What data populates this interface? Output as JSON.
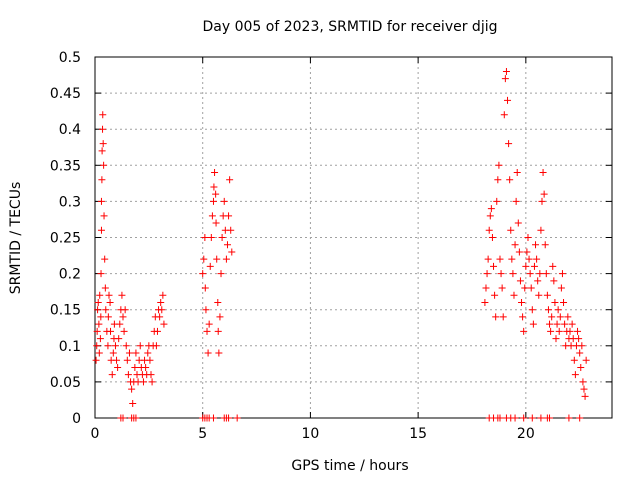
{
  "chart_data": {
    "type": "scatter",
    "title": "Day 005 of 2023, SRMTID for receiver djig",
    "xlabel": "GPS time / hours",
    "ylabel": "SRMTID / TECUs",
    "xlim": [
      0,
      24
    ],
    "ylim": [
      0,
      0.5
    ],
    "x_ticks": [
      0,
      5,
      10,
      15,
      20
    ],
    "y_ticks": [
      0,
      0.05,
      0.1,
      0.15,
      0.2,
      0.25,
      0.3,
      0.35,
      0.4,
      0.45,
      0.5
    ],
    "x_tick_labels": [
      "0",
      "5",
      "10",
      "15",
      "20"
    ],
    "y_tick_labels": [
      "0",
      "0.05",
      "0.1",
      "0.15",
      "0.2",
      "0.25",
      "0.3",
      "0.35",
      "0.4",
      "0.45",
      "0.5"
    ],
    "grid": true,
    "marker": "+",
    "marker_color": "#ff0000",
    "series": [
      {
        "name": "SRMTID",
        "points": [
          [
            0.05,
            0.08
          ],
          [
            0.08,
            0.1
          ],
          [
            0.1,
            0.12
          ],
          [
            0.12,
            0.15
          ],
          [
            0.15,
            0.16
          ],
          [
            0.18,
            0.13
          ],
          [
            0.2,
            0.09
          ],
          [
            0.22,
            0.17
          ],
          [
            0.25,
            0.11
          ],
          [
            0.27,
            0.14
          ],
          [
            0.28,
            0.2
          ],
          [
            0.3,
            0.26
          ],
          [
            0.3,
            0.3
          ],
          [
            0.32,
            0.33
          ],
          [
            0.33,
            0.37
          ],
          [
            0.35,
            0.4
          ],
          [
            0.36,
            0.42
          ],
          [
            0.38,
            0.38
          ],
          [
            0.4,
            0.35
          ],
          [
            0.42,
            0.28
          ],
          [
            0.45,
            0.22
          ],
          [
            0.48,
            0.18
          ],
          [
            0.5,
            0.15
          ],
          [
            0.55,
            0.12
          ],
          [
            0.6,
            0.1
          ],
          [
            0.62,
            0.14
          ],
          [
            0.65,
            0.17
          ],
          [
            0.7,
            0.16
          ],
          [
            0.72,
            0.12
          ],
          [
            0.75,
            0.08
          ],
          [
            0.8,
            0.06
          ],
          [
            0.85,
            0.09
          ],
          [
            0.88,
            0.11
          ],
          [
            0.9,
            0.13
          ],
          [
            0.95,
            0.1
          ],
          [
            1.0,
            0.08
          ],
          [
            1.05,
            0.07
          ],
          [
            1.1,
            0.11
          ],
          [
            1.15,
            0.13
          ],
          [
            1.2,
            0.15
          ],
          [
            1.25,
            0.17
          ],
          [
            1.3,
            0.14
          ],
          [
            1.35,
            0.12
          ],
          [
            1.4,
            0.15
          ],
          [
            1.45,
            0.1
          ],
          [
            1.5,
            0.08
          ],
          [
            1.55,
            0.06
          ],
          [
            1.6,
            0.09
          ],
          [
            1.65,
            0.05
          ],
          [
            1.7,
            0.04
          ],
          [
            1.75,
            0.02
          ],
          [
            1.8,
            0.05
          ],
          [
            1.85,
            0.07
          ],
          [
            1.9,
            0.09
          ],
          [
            1.95,
            0.06
          ],
          [
            2.0,
            0.05
          ],
          [
            2.05,
            0.08
          ],
          [
            2.1,
            0.1
          ],
          [
            2.15,
            0.07
          ],
          [
            2.2,
            0.06
          ],
          [
            2.25,
            0.05
          ],
          [
            2.3,
            0.08
          ],
          [
            2.35,
            0.07
          ],
          [
            2.4,
            0.06
          ],
          [
            2.45,
            0.09
          ],
          [
            2.5,
            0.1
          ],
          [
            2.55,
            0.08
          ],
          [
            2.6,
            0.06
          ],
          [
            2.65,
            0.05
          ],
          [
            2.7,
            0.1
          ],
          [
            2.75,
            0.12
          ],
          [
            2.8,
            0.14
          ],
          [
            2.85,
            0.1
          ],
          [
            2.9,
            0.12
          ],
          [
            2.95,
            0.15
          ],
          [
            3.0,
            0.14
          ],
          [
            3.05,
            0.16
          ],
          [
            3.1,
            0.15
          ],
          [
            3.15,
            0.17
          ],
          [
            3.2,
            0.13
          ],
          [
            5.0,
            0.2
          ],
          [
            5.05,
            0.22
          ],
          [
            5.1,
            0.25
          ],
          [
            5.12,
            0.18
          ],
          [
            5.15,
            0.15
          ],
          [
            5.2,
            0.12
          ],
          [
            5.25,
            0.09
          ],
          [
            5.3,
            0.13
          ],
          [
            5.35,
            0.21
          ],
          [
            5.4,
            0.25
          ],
          [
            5.45,
            0.28
          ],
          [
            5.5,
            0.3
          ],
          [
            5.52,
            0.32
          ],
          [
            5.55,
            0.34
          ],
          [
            5.6,
            0.31
          ],
          [
            5.62,
            0.27
          ],
          [
            5.65,
            0.22
          ],
          [
            5.7,
            0.16
          ],
          [
            5.72,
            0.12
          ],
          [
            5.75,
            0.09
          ],
          [
            5.8,
            0.14
          ],
          [
            5.85,
            0.2
          ],
          [
            5.9,
            0.25
          ],
          [
            5.95,
            0.28
          ],
          [
            6.0,
            0.3
          ],
          [
            6.05,
            0.26
          ],
          [
            6.1,
            0.22
          ],
          [
            6.15,
            0.24
          ],
          [
            6.2,
            0.28
          ],
          [
            6.25,
            0.33
          ],
          [
            6.3,
            0.26
          ],
          [
            6.35,
            0.23
          ],
          [
            18.1,
            0.16
          ],
          [
            18.15,
            0.18
          ],
          [
            18.2,
            0.2
          ],
          [
            18.25,
            0.22
          ],
          [
            18.3,
            0.26
          ],
          [
            18.35,
            0.28
          ],
          [
            18.4,
            0.29
          ],
          [
            18.45,
            0.25
          ],
          [
            18.5,
            0.21
          ],
          [
            18.55,
            0.17
          ],
          [
            18.6,
            0.14
          ],
          [
            18.65,
            0.3
          ],
          [
            18.7,
            0.33
          ],
          [
            18.75,
            0.35
          ],
          [
            18.8,
            0.22
          ],
          [
            18.85,
            0.2
          ],
          [
            18.9,
            0.18
          ],
          [
            18.95,
            0.14
          ],
          [
            19.0,
            0.42
          ],
          [
            19.05,
            0.47
          ],
          [
            19.1,
            0.48
          ],
          [
            19.15,
            0.44
          ],
          [
            19.2,
            0.38
          ],
          [
            19.25,
            0.33
          ],
          [
            19.3,
            0.26
          ],
          [
            19.35,
            0.22
          ],
          [
            19.4,
            0.2
          ],
          [
            19.45,
            0.17
          ],
          [
            19.5,
            0.24
          ],
          [
            19.55,
            0.3
          ],
          [
            19.6,
            0.34
          ],
          [
            19.65,
            0.27
          ],
          [
            19.7,
            0.23
          ],
          [
            19.75,
            0.19
          ],
          [
            19.8,
            0.16
          ],
          [
            19.85,
            0.14
          ],
          [
            19.9,
            0.12
          ],
          [
            19.95,
            0.18
          ],
          [
            20.0,
            0.21
          ],
          [
            20.05,
            0.23
          ],
          [
            20.1,
            0.25
          ],
          [
            20.15,
            0.22
          ],
          [
            20.2,
            0.2
          ],
          [
            20.25,
            0.18
          ],
          [
            20.3,
            0.15
          ],
          [
            20.35,
            0.13
          ],
          [
            20.4,
            0.21
          ],
          [
            20.45,
            0.24
          ],
          [
            20.5,
            0.22
          ],
          [
            20.55,
            0.19
          ],
          [
            20.6,
            0.17
          ],
          [
            20.65,
            0.2
          ],
          [
            20.7,
            0.26
          ],
          [
            20.75,
            0.3
          ],
          [
            20.8,
            0.34
          ],
          [
            20.85,
            0.31
          ],
          [
            20.9,
            0.24
          ],
          [
            20.95,
            0.2
          ],
          [
            21.0,
            0.17
          ],
          [
            21.05,
            0.15
          ],
          [
            21.1,
            0.13
          ],
          [
            21.15,
            0.12
          ],
          [
            21.2,
            0.14
          ],
          [
            21.25,
            0.21
          ],
          [
            21.3,
            0.19
          ],
          [
            21.35,
            0.16
          ],
          [
            21.4,
            0.11
          ],
          [
            21.45,
            0.13
          ],
          [
            21.5,
            0.15
          ],
          [
            21.55,
            0.12
          ],
          [
            21.6,
            0.14
          ],
          [
            21.65,
            0.18
          ],
          [
            21.7,
            0.2
          ],
          [
            21.75,
            0.16
          ],
          [
            21.8,
            0.13
          ],
          [
            21.85,
            0.1
          ],
          [
            21.9,
            0.12
          ],
          [
            21.95,
            0.14
          ],
          [
            22.0,
            0.11
          ],
          [
            22.05,
            0.12
          ],
          [
            22.1,
            0.1
          ],
          [
            22.15,
            0.13
          ],
          [
            22.2,
            0.11
          ],
          [
            22.25,
            0.08
          ],
          [
            22.3,
            0.06
          ],
          [
            22.35,
            0.1
          ],
          [
            22.4,
            0.12
          ],
          [
            22.45,
            0.11
          ],
          [
            22.5,
            0.09
          ],
          [
            22.55,
            0.07
          ],
          [
            22.6,
            0.1
          ],
          [
            22.65,
            0.05
          ],
          [
            22.7,
            0.04
          ],
          [
            22.75,
            0.03
          ],
          [
            22.8,
            0.08
          ]
        ],
        "zero_points_x": [
          1.2,
          1.3,
          1.7,
          1.8,
          1.9,
          5.0,
          5.1,
          5.2,
          5.3,
          5.5,
          6.0,
          6.1,
          6.2,
          6.6,
          18.3,
          18.5,
          18.7,
          18.8,
          19.1,
          19.3,
          19.5,
          19.9,
          20.3,
          20.7,
          21.0,
          21.1,
          22.0,
          22.5
        ]
      }
    ]
  }
}
